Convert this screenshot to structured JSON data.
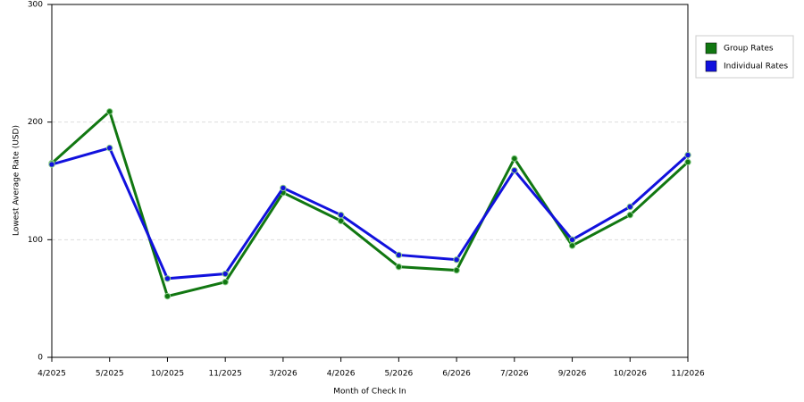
{
  "chart_data": {
    "type": "line",
    "x_label": "Month of Check In",
    "y_label": "Lowest Average Rate (USD)",
    "categories": [
      "4/2025",
      "5/2025",
      "10/2025",
      "11/2025",
      "3/2026",
      "4/2026",
      "5/2026",
      "6/2026",
      "7/2026",
      "9/2026",
      "10/2026",
      "11/2026"
    ],
    "series": [
      {
        "name": "Group Rates",
        "color": "#117711",
        "values": [
          165,
          209,
          52,
          64,
          140,
          116,
          77,
          74,
          169,
          95,
          121,
          166
        ]
      },
      {
        "name": "Individual Rates",
        "color": "#1111dd",
        "values": [
          164,
          178,
          67,
          71,
          144,
          121,
          87,
          83,
          159,
          100,
          128,
          172
        ]
      }
    ],
    "ylim": [
      0,
      300
    ],
    "yticks": [
      0,
      100,
      200,
      300
    ],
    "grid": true,
    "legend": "right"
  }
}
